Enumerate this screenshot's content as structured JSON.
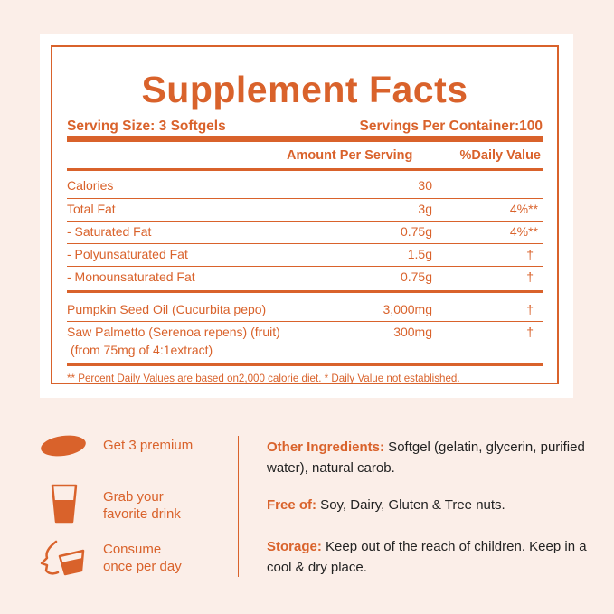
{
  "facts": {
    "title": "Supplement Facts",
    "serving_size": "Serving Size: 3 Softgels",
    "servings_per_container": "Servings Per Container:100",
    "col_amount": "Amount Per Serving",
    "col_daily": "%Daily Value",
    "rows": [
      {
        "name": "Calories",
        "amount": "30",
        "daily": ""
      },
      {
        "name": "Total Fat",
        "amount": "3g",
        "daily": "4%**"
      },
      {
        "name": "- Saturated Fat",
        "amount": "0.75g",
        "daily": "4%**"
      },
      {
        "name": "- Polyunsaturated Fat",
        "amount": "1.5g",
        "daily": "†"
      },
      {
        "name": "- Monounsaturated Fat",
        "amount": "0.75g",
        "daily": "†"
      },
      {
        "name": "Pumpkin Seed Oil (Cucurbita pepo)",
        "amount": "3,000mg",
        "daily": "†"
      },
      {
        "name": "Saw Palmetto (Serenoa repens) (fruit)",
        "name2": "(from 75mg of 4:1extract)",
        "amount": "300mg",
        "daily": "†"
      }
    ],
    "footnote": "** Percent Daily Values are based on2,000 calorie diet.  * Daily Value not established."
  },
  "steps": [
    {
      "line1": "Get 3 premium",
      "line2": "",
      "icon": "softgel-icon"
    },
    {
      "line1": "Grab your",
      "line2": "favorite drink",
      "icon": "drink-glass-icon"
    },
    {
      "line1": "Consume",
      "line2": "once per day",
      "icon": "drinking-person-icon"
    }
  ],
  "info": {
    "other_label": "Other Ingredients:",
    "other_text": " Softgel (gelatin, glycerin, purified water), natural carob.",
    "free_label": "Free of:",
    "free_text": " Soy, Dairy, Gluten & Tree nuts.",
    "storage_label": "Storage:",
    "storage_text": " Keep out of the reach of children. Keep in a cool & dry place."
  },
  "colors": {
    "accent": "#d9622b",
    "background": "#fbeee8",
    "card": "#ffffff"
  }
}
